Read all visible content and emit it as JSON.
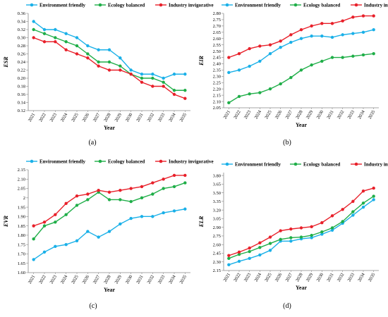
{
  "figure": {
    "panels": [
      "(a)",
      "(b)",
      "(c)",
      "(d)"
    ]
  },
  "chart_data": [
    {
      "type": "line",
      "panel_label": "(a)",
      "xlabel": "Year",
      "ylabel": "ESR",
      "ylim": [
        0.12,
        0.36
      ],
      "yticks": [
        0.12,
        0.14,
        0.16,
        0.18,
        0.2,
        0.22,
        0.24,
        0.26,
        0.28,
        0.3,
        0.32,
        0.34,
        0.36
      ],
      "ytick_labels": [
        "0.12",
        "0.14",
        "0.16",
        "0.18",
        "0.20",
        "0.22",
        "0.24",
        "0.26",
        "0.28",
        "0.30",
        "0.32",
        "0.34",
        "0.36"
      ],
      "x": [
        "2021",
        "2022",
        "2023",
        "2024",
        "2025",
        "2026",
        "2027",
        "2028",
        "2029",
        "2030",
        "2031",
        "2032",
        "2033",
        "2034",
        "2035"
      ],
      "legend_position": "top",
      "grid": false,
      "series": [
        {
          "name": "Environment friendly",
          "color": "#1ab0e8",
          "values": [
            0.34,
            0.32,
            0.32,
            0.31,
            0.3,
            0.28,
            0.27,
            0.27,
            0.25,
            0.22,
            0.21,
            0.21,
            0.2,
            0.21,
            0.21
          ]
        },
        {
          "name": "Ecology balanced",
          "color": "#1fae48",
          "values": [
            0.32,
            0.31,
            0.3,
            0.29,
            0.28,
            0.26,
            0.24,
            0.24,
            0.23,
            0.21,
            0.2,
            0.2,
            0.19,
            0.17,
            0.17
          ]
        },
        {
          "name": "Industry invigorative",
          "color": "#e8202a",
          "values": [
            0.3,
            0.29,
            0.29,
            0.27,
            0.26,
            0.25,
            0.23,
            0.22,
            0.22,
            0.21,
            0.19,
            0.18,
            0.18,
            0.16,
            0.15
          ]
        }
      ]
    },
    {
      "type": "line",
      "panel_label": "(b)",
      "xlabel": "Year",
      "ylabel": "EIR",
      "ylim": [
        2.05,
        2.8
      ],
      "yticks": [
        2.05,
        2.1,
        2.15,
        2.2,
        2.25,
        2.3,
        2.35,
        2.4,
        2.45,
        2.5,
        2.55,
        2.6,
        2.65,
        2.7,
        2.75,
        2.8
      ],
      "ytick_labels": [
        "2.05",
        "2.10",
        "2.15",
        "2.20",
        "2.25",
        "2.30",
        "2.35",
        "2.40",
        "2.45",
        "2.50",
        "2.55",
        "2.60",
        "2.65",
        "2.70",
        "2.75",
        "2.80"
      ],
      "x": [
        "2021",
        "2022",
        "2023",
        "2024",
        "2025",
        "2026",
        "2027",
        "2028",
        "2029",
        "2030",
        "2031",
        "2032",
        "2033",
        "2034",
        "2035"
      ],
      "legend_position": "top",
      "grid": false,
      "series": [
        {
          "name": "Environment friendly",
          "color": "#1ab0e8",
          "values": [
            2.33,
            2.35,
            2.38,
            2.42,
            2.48,
            2.53,
            2.57,
            2.6,
            2.62,
            2.62,
            2.61,
            2.63,
            2.64,
            2.65,
            2.67
          ]
        },
        {
          "name": "Ecology balanced",
          "color": "#1fae48",
          "values": [
            2.09,
            2.14,
            2.16,
            2.17,
            2.2,
            2.24,
            2.29,
            2.35,
            2.39,
            2.42,
            2.45,
            2.45,
            2.46,
            2.47,
            2.48
          ]
        },
        {
          "name": "Industry invigorative",
          "color": "#e8202a",
          "values": [
            2.45,
            2.48,
            2.52,
            2.54,
            2.55,
            2.58,
            2.63,
            2.67,
            2.7,
            2.72,
            2.72,
            2.74,
            2.77,
            2.78,
            2.78
          ]
        }
      ]
    },
    {
      "type": "line",
      "panel_label": "(c)",
      "xlabel": "Year",
      "ylabel": "EVR",
      "ylim": [
        1.6,
        2.15
      ],
      "yticks": [
        1.6,
        1.65,
        1.7,
        1.75,
        1.8,
        1.85,
        1.9,
        1.95,
        2.0,
        2.05,
        2.1,
        2.15
      ],
      "ytick_labels": [
        "1.60",
        "1.65",
        "1.70",
        "1.75",
        "1.80",
        "1.85",
        "1.90",
        "1.95",
        "2",
        "2.05",
        "2.10",
        "2.15"
      ],
      "x": [
        "2021",
        "2022",
        "2023",
        "2024",
        "2025",
        "2026",
        "2027",
        "2028",
        "2029",
        "2030",
        "2031",
        "2032",
        "2033",
        "2034",
        "2035"
      ],
      "legend_position": "top",
      "grid": false,
      "series": [
        {
          "name": "Environment friendly",
          "color": "#1ab0e8",
          "values": [
            1.67,
            1.71,
            1.74,
            1.75,
            1.77,
            1.82,
            1.79,
            1.82,
            1.86,
            1.89,
            1.9,
            1.9,
            1.92,
            1.93,
            1.94
          ]
        },
        {
          "name": "Ecology balanced",
          "color": "#1fae48",
          "values": [
            1.78,
            1.85,
            1.87,
            1.91,
            1.96,
            1.99,
            2.03,
            1.99,
            1.99,
            1.98,
            2.0,
            2.02,
            2.05,
            2.06,
            2.08
          ]
        },
        {
          "name": "Industry invigorative",
          "color": "#e8202a",
          "values": [
            1.85,
            1.87,
            1.91,
            1.97,
            2.01,
            2.02,
            2.04,
            2.03,
            2.04,
            2.05,
            2.06,
            2.08,
            2.1,
            2.12,
            2.12
          ]
        }
      ]
    },
    {
      "type": "line",
      "panel_label": "(d)",
      "xlabel": "Year",
      "ylabel": "ELR",
      "ylim": [
        2.15,
        3.85
      ],
      "yticks": [
        2.15,
        2.3,
        2.45,
        2.6,
        2.75,
        2.9,
        3.05,
        3.2,
        3.35,
        3.5,
        3.65,
        3.8
      ],
      "ytick_labels": [
        "2.15",
        "2.30",
        "2.45",
        "2.60",
        "2.75",
        "2.90",
        "3.05",
        "3.20",
        "3.35",
        "3.50",
        "3.65",
        "3.80"
      ],
      "x": [
        "2021",
        "2022",
        "2023",
        "2024",
        "2025",
        "2026",
        "2027",
        "2028",
        "2029",
        "2030",
        "2031",
        "2032",
        "2033",
        "2034",
        "2035"
      ],
      "legend_position": "top",
      "grid": false,
      "series": [
        {
          "name": "Environment friendly",
          "color": "#1ab0e8",
          "values": [
            2.25,
            2.31,
            2.36,
            2.42,
            2.5,
            2.66,
            2.66,
            2.7,
            2.72,
            2.78,
            2.85,
            2.97,
            3.11,
            3.25,
            3.38
          ]
        },
        {
          "name": "Ecology balanced",
          "color": "#1fae48",
          "values": [
            2.36,
            2.43,
            2.48,
            2.55,
            2.62,
            2.69,
            2.72,
            2.73,
            2.76,
            2.82,
            2.89,
            3.0,
            3.17,
            3.32,
            3.44
          ]
        },
        {
          "name": "Industry invigorative",
          "color": "#e8202a",
          "values": [
            2.41,
            2.47,
            2.54,
            2.63,
            2.73,
            2.84,
            2.87,
            2.89,
            2.91,
            2.98,
            3.1,
            3.21,
            3.35,
            3.53,
            3.58
          ]
        }
      ]
    }
  ]
}
